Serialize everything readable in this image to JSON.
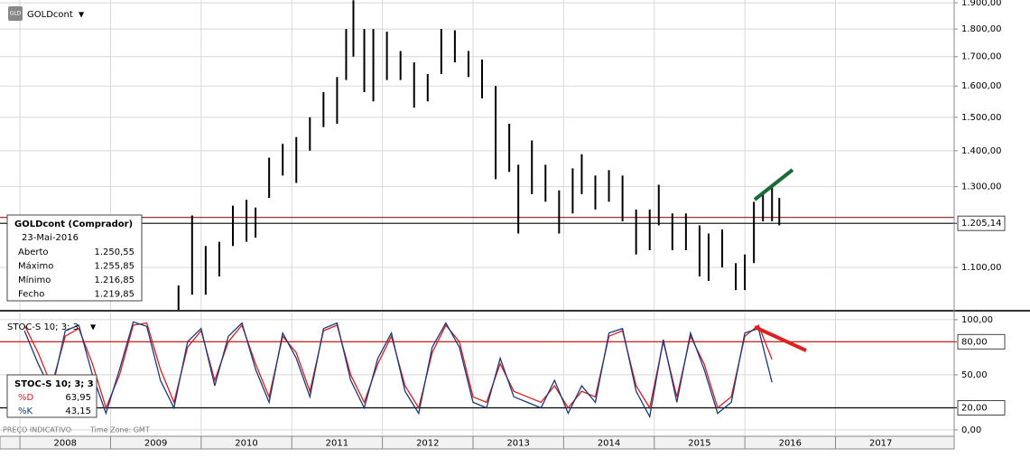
{
  "header": {
    "symbol": "GOLDcont",
    "icon": "GLD"
  },
  "footer": {
    "note": "PREÇO INDICATIVO",
    "timezone": "Time Zone: GMT"
  },
  "info_box": {
    "title": "GOLDcont (Comprador)",
    "date": "23-Mai-2016",
    "rows": [
      {
        "label": "Aberto",
        "value": "1.250,55"
      },
      {
        "label": "Máximo",
        "value": "1.255,85"
      },
      {
        "label": "Mínimo",
        "value": "1.216,85"
      },
      {
        "label": "Fecho",
        "value": "1.219,85"
      }
    ]
  },
  "stoch_box": {
    "title": "STOC-S 10; 3; 3",
    "values": [
      "63,95",
      "43,15"
    ]
  },
  "chart_data": [
    {
      "type": "hilo",
      "title": "GOLDcont",
      "color": "#000000",
      "log": true,
      "grid": true,
      "x": [
        2009.75,
        2009.9,
        2010.05,
        2010.2,
        2010.35,
        2010.5,
        2010.6,
        2010.75,
        2010.9,
        2011.05,
        2011.2,
        2011.35,
        2011.5,
        2011.6,
        2011.68,
        2011.8,
        2011.9,
        2012.05,
        2012.2,
        2012.35,
        2012.5,
        2012.65,
        2012.8,
        2012.95,
        2013.1,
        2013.25,
        2013.4,
        2013.5,
        2013.65,
        2013.8,
        2013.95,
        2014.1,
        2014.2,
        2014.35,
        2014.5,
        2014.65,
        2014.8,
        2014.95,
        2015.05,
        2015.2,
        2015.35,
        2015.5,
        2015.6,
        2015.75,
        2015.9,
        2016.0,
        2016.1,
        2016.2,
        2016.3,
        2016.38
      ],
      "high": [
        1060,
        1225,
        1150,
        1160,
        1250,
        1265,
        1245,
        1380,
        1420,
        1440,
        1500,
        1580,
        1630,
        1800,
        1910,
        1800,
        1800,
        1790,
        1720,
        1680,
        1640,
        1800,
        1795,
        1720,
        1690,
        1600,
        1480,
        1360,
        1430,
        1360,
        1290,
        1350,
        1390,
        1330,
        1345,
        1330,
        1240,
        1240,
        1305,
        1230,
        1230,
        1200,
        1180,
        1190,
        1110,
        1130,
        1260,
        1285,
        1300,
        1270
      ],
      "low": [
        975,
        1040,
        1040,
        1080,
        1150,
        1160,
        1170,
        1270,
        1330,
        1310,
        1400,
        1470,
        1480,
        1620,
        1700,
        1580,
        1550,
        1620,
        1620,
        1530,
        1550,
        1640,
        1680,
        1630,
        1560,
        1320,
        1340,
        1180,
        1280,
        1260,
        1180,
        1230,
        1280,
        1240,
        1260,
        1210,
        1130,
        1140,
        1200,
        1140,
        1140,
        1080,
        1070,
        1100,
        1050,
        1050,
        1110,
        1210,
        1210,
        1200
      ],
      "xlim": [
        2007.78,
        2018.31
      ],
      "xticks": [
        2008,
        2009,
        2010,
        2011,
        2012,
        2013,
        2014,
        2015,
        2016,
        2017
      ],
      "ylim": [
        1008,
        1911
      ],
      "yticks": [
        {
          "value": 1100,
          "label": "1.100,00"
        },
        {
          "value": 1300,
          "label": "1.300,00"
        },
        {
          "value": 1400,
          "label": "1.400,00"
        },
        {
          "value": 1500,
          "label": "1.500,00"
        },
        {
          "value": 1600,
          "label": "1.600,00"
        },
        {
          "value": 1700,
          "label": "1.700,00"
        },
        {
          "value": 1800,
          "label": "1.800,00"
        },
        {
          "value": 1900,
          "label": "1.900,00"
        }
      ],
      "hlines": [
        {
          "value": 1219.85,
          "color": "#8b1a1a"
        },
        {
          "value": 1205.14,
          "label": "1.205,14",
          "color": "#222222"
        }
      ]
    },
    {
      "type": "line",
      "grid": true,
      "x": [
        2008.05,
        2008.2,
        2008.35,
        2008.5,
        2008.65,
        2008.8,
        2008.95,
        2009.1,
        2009.25,
        2009.4,
        2009.55,
        2009.7,
        2009.85,
        2010.0,
        2010.15,
        2010.3,
        2010.45,
        2010.6,
        2010.75,
        2010.9,
        2011.05,
        2011.2,
        2011.35,
        2011.5,
        2011.65,
        2011.8,
        2011.95,
        2012.1,
        2012.25,
        2012.4,
        2012.55,
        2012.7,
        2012.85,
        2013.0,
        2013.15,
        2013.3,
        2013.45,
        2013.6,
        2013.75,
        2013.9,
        2014.05,
        2014.2,
        2014.35,
        2014.5,
        2014.65,
        2014.8,
        2014.95,
        2015.1,
        2015.25,
        2015.4,
        2015.55,
        2015.7,
        2015.85,
        2016.0,
        2016.15,
        2016.3
      ],
      "series": [
        {
          "name": "%D",
          "color": "#d42020",
          "values": [
            95,
            70,
            40,
            85,
            92,
            60,
            20,
            50,
            95,
            97,
            55,
            25,
            75,
            90,
            45,
            80,
            95,
            60,
            30,
            85,
            70,
            35,
            90,
            95,
            50,
            25,
            60,
            85,
            40,
            20,
            70,
            95,
            80,
            30,
            25,
            60,
            35,
            30,
            25,
            40,
            20,
            35,
            30,
            85,
            90,
            40,
            20,
            80,
            30,
            85,
            60,
            20,
            30,
            85,
            95,
            63.95
          ]
        },
        {
          "name": "%K",
          "color": "#1a3a7a",
          "values": [
            90,
            60,
            35,
            90,
            95,
            50,
            15,
            55,
            98,
            94,
            45,
            20,
            80,
            92,
            40,
            85,
            97,
            55,
            25,
            88,
            65,
            30,
            92,
            97,
            45,
            20,
            65,
            88,
            35,
            15,
            75,
            97,
            75,
            25,
            20,
            65,
            30,
            25,
            20,
            45,
            15,
            40,
            25,
            88,
            92,
            35,
            12,
            82,
            25,
            88,
            55,
            15,
            25,
            88,
            92,
            43.15
          ]
        }
      ],
      "xlim": [
        2007.78,
        2018.31
      ],
      "xticks": [
        2008,
        2009,
        2010,
        2011,
        2012,
        2013,
        2014,
        2015,
        2016,
        2017
      ],
      "ylim": [
        -5,
        106.5
      ],
      "yticks": [
        {
          "value": 0,
          "label": "0,00"
        },
        {
          "value": 50,
          "label": "50,00"
        },
        {
          "value": 100,
          "label": "100,00"
        }
      ],
      "hlines": [
        {
          "value": 80,
          "label": "80,00",
          "color": "#cc0000"
        },
        {
          "value": 20,
          "label": "20,00",
          "color": "#000000"
        }
      ]
    }
  ]
}
